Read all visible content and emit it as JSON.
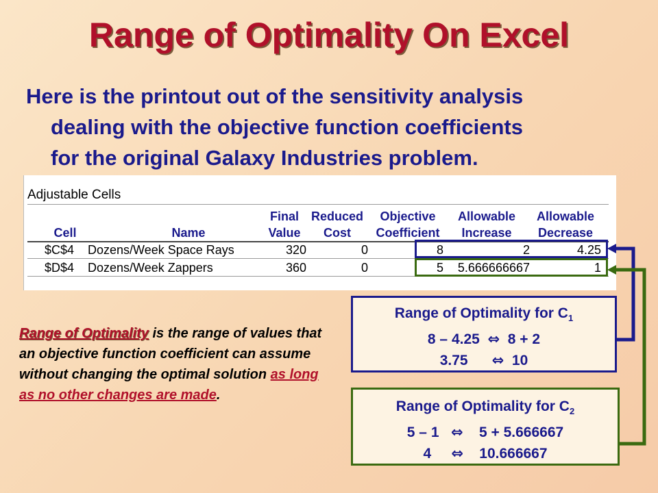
{
  "title": "Range of Optimality On Excel",
  "intro": {
    "line1": "Here is the printout out of the sensitivity analysis",
    "line2": "dealing with the objective function coefficients",
    "line3": "for the original Galaxy Industries problem."
  },
  "sheet": {
    "heading": "Adjustable Cells",
    "headers": {
      "cell": "Cell",
      "name": "Name",
      "final_1": "Final",
      "final_2": "Value",
      "reduced_1": "Reduced",
      "reduced_2": "Cost",
      "objective_1": "Objective",
      "objective_2": "Coefficient",
      "increase_1": "Allowable",
      "increase_2": "Increase",
      "decrease_1": "Allowable",
      "decrease_2": "Decrease"
    },
    "rows": [
      {
        "cell": "$C$4",
        "name": "Dozens/Week Space Rays",
        "final": "320",
        "reduced": "0",
        "coef": "8",
        "increase": "2",
        "decrease": "4.25"
      },
      {
        "cell": "$D$4",
        "name": "Dozens/Week Zappers",
        "final": "360",
        "reduced": "0",
        "coef": "5",
        "increase": "5.666666667",
        "decrease": "1"
      }
    ]
  },
  "note": {
    "term": "Range of Optimality",
    "text": " is the range of values that an objective function coefficient can assume without changing the optimal solution ",
    "underlined": "as long as no other changes are made",
    "end": "."
  },
  "box1": {
    "title": "Range of Optimality for C",
    "sub": "1",
    "line2_left": "8 – 4.25",
    "arrow": "⇔",
    "line2_right": "8 + 2",
    "line3_left": "3.75",
    "line3_right": "10"
  },
  "box2": {
    "title": "Range of Optimality for C",
    "sub": "2",
    "line2_left": "5 – 1",
    "arrow": "⇔",
    "line2_right": "5 + 5.666667",
    "line3_left": "4",
    "line3_right": "10.666667"
  },
  "colors": {
    "title": "#b0102a",
    "text": "#1a1a8c",
    "box1_border": "#1a1a8c",
    "box2_border": "#3a6a10"
  }
}
